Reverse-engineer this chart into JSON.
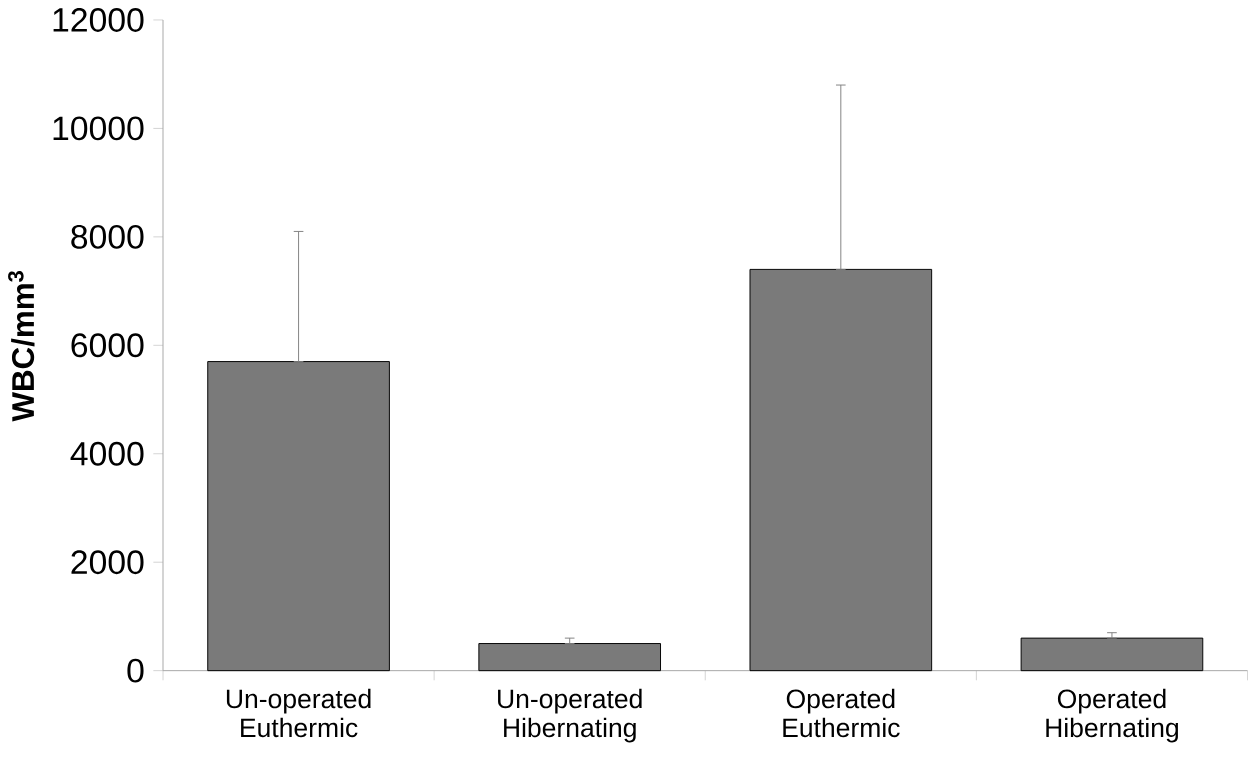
{
  "chart_data": {
    "type": "bar",
    "ylabel": "**WBC/mm$^{3}$**",
    "categories": [
      "Un-operated Euthermic",
      "Un-operated Hibernating",
      "Operated Euthermic",
      "Operated Hibernating"
    ],
    "values": [
      5700,
      500,
      7400,
      600
    ],
    "errors": [
      [
        5700,
        8100
      ],
      [
        500,
        600
      ],
      [
        7400,
        10800
      ],
      [
        600,
        700
      ]
    ],
    "color": "#7a7a7a",
    "ylim": [
      0,
      12000
    ],
    "yticks": [
      0,
      2000,
      4000,
      6000,
      8000,
      10000,
      12000
    ],
    "grid": false
  }
}
